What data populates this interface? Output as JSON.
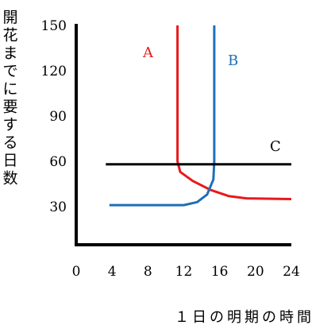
{
  "chart_data": {
    "type": "line",
    "xlabel": "１日の明期の時間",
    "ylabel": "開花までに要する日数",
    "x_ticks": [
      "0",
      "4",
      "8",
      "12",
      "16",
      "20",
      "24"
    ],
    "y_ticks": [
      "30",
      "60",
      "90",
      "120",
      "150"
    ],
    "xlim": [
      0,
      24
    ],
    "ylim": [
      0,
      150
    ],
    "grid": false,
    "series": [
      {
        "name": "A",
        "color": "#e8191c",
        "points": [
          [
            11.3,
            150
          ],
          [
            11.3,
            60
          ],
          [
            11.6,
            53
          ],
          [
            13,
            47
          ],
          [
            15,
            41
          ],
          [
            17,
            37
          ],
          [
            19,
            35.5
          ],
          [
            24,
            35
          ]
        ]
      },
      {
        "name": "B",
        "color": "#1f6fb8",
        "points": [
          [
            3.7,
            31
          ],
          [
            12,
            31
          ],
          [
            13.5,
            33
          ],
          [
            14.6,
            38
          ],
          [
            15.3,
            48
          ],
          [
            15.4,
            60
          ],
          [
            15.4,
            150
          ]
        ]
      },
      {
        "name": "C",
        "color": "#000000",
        "points": [
          [
            3.3,
            58
          ],
          [
            24,
            58
          ]
        ]
      }
    ]
  }
}
